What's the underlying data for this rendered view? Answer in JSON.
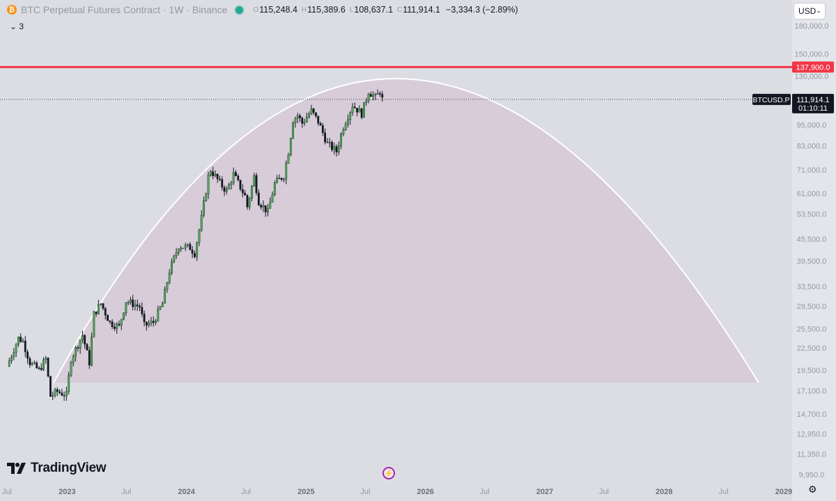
{
  "header": {
    "symbol": "BTC Perpetual Futures Contract · 1W · Binance",
    "open_label": "O",
    "open": "115,248.4",
    "high_label": "H",
    "high": "115,389.6",
    "low_label": "L",
    "low": "108,637.1",
    "close_label": "C",
    "close": "111,914.1",
    "change": "−3,334.3 (−2.89%)",
    "indicator_toggle": "3"
  },
  "currency_selector": "USD",
  "branding": "TradingView",
  "colors": {
    "background": "#dcdde3",
    "up_candle": "#4caf50",
    "down_candle": "#131722",
    "resistance_line": "#f23645",
    "arc": "#ffffff",
    "arc_fill": "#d6c6d4"
  },
  "chart_data": {
    "type": "candlestick",
    "scale": "log",
    "y_range": [
      9000,
      185000
    ],
    "y_ticks": [
      "180,000.0",
      "150,000.0",
      "130,000.0",
      "95,000.0",
      "83,000.0",
      "71,000.0",
      "61,000.0",
      "53,500.0",
      "45,500.0",
      "39,500.0",
      "33,500.0",
      "29,500.0",
      "25,500.0",
      "22,500.0",
      "19,500.0",
      "17,100.0",
      "14,700.0",
      "12,950.0",
      "11,350.0",
      "9,950.0"
    ],
    "x_ticks": [
      "Jul",
      "2023",
      "Jul",
      "2024",
      "Jul",
      "2025",
      "Jul",
      "2026",
      "Jul",
      "2027",
      "Jul",
      "2028",
      "Jul",
      "2029"
    ],
    "x_range": [
      "2022-07-01",
      "2029-01-01"
    ],
    "resistance": {
      "value": 137900,
      "label": "137,900.0"
    },
    "last_price": {
      "symbol_label": "BTCUSD.P",
      "value": 111914.1,
      "label": "111,914.1",
      "countdown": "01:10:11"
    },
    "arc": {
      "start": {
        "date": "2022-11-21",
        "price": 18000
      },
      "peak": {
        "date": "2025-09-01",
        "price": 128000
      },
      "end": {
        "date": "2028-10-16",
        "price": 18000
      }
    },
    "price_path": [
      [
        "2022-07-01",
        20000
      ],
      [
        "2022-08-05",
        24000
      ],
      [
        "2022-08-19",
        23500
      ],
      [
        "2022-09-09",
        20500
      ],
      [
        "2022-10-07",
        19500
      ],
      [
        "2022-10-28",
        21000
      ],
      [
        "2022-11-11",
        16500
      ],
      [
        "2022-12-02",
        17000
      ],
      [
        "2022-12-30",
        16600
      ],
      [
        "2023-01-13",
        21000
      ],
      [
        "2023-02-17",
        24500
      ],
      [
        "2023-03-10",
        20500
      ],
      [
        "2023-03-24",
        28000
      ],
      [
        "2023-04-14",
        30000
      ],
      [
        "2023-05-12",
        26500
      ],
      [
        "2023-06-09",
        25800
      ],
      [
        "2023-06-30",
        30500
      ],
      [
        "2023-08-11",
        29400
      ],
      [
        "2023-08-25",
        26000
      ],
      [
        "2023-09-22",
        26600
      ],
      [
        "2023-10-20",
        30000
      ],
      [
        "2023-11-10",
        37000
      ],
      [
        "2023-12-08",
        43500
      ],
      [
        "2024-01-12",
        43000
      ],
      [
        "2024-01-26",
        41500
      ],
      [
        "2024-02-16",
        52000
      ],
      [
        "2024-03-08",
        68000
      ],
      [
        "2024-03-15",
        71000
      ],
      [
        "2024-04-19",
        64000
      ],
      [
        "2024-05-03",
        62000
      ],
      [
        "2024-05-24",
        69000
      ],
      [
        "2024-06-28",
        60000
      ],
      [
        "2024-07-05",
        56000
      ],
      [
        "2024-07-26",
        68000
      ],
      [
        "2024-08-09",
        58000
      ],
      [
        "2024-09-06",
        54000
      ],
      [
        "2024-09-27",
        65000
      ],
      [
        "2024-10-25",
        68500
      ],
      [
        "2024-11-08",
        80000
      ],
      [
        "2024-11-22",
        98000
      ],
      [
        "2024-12-06",
        101000
      ],
      [
        "2024-12-20",
        96000
      ],
      [
        "2025-01-17",
        104000
      ],
      [
        "2025-02-07",
        97000
      ],
      [
        "2025-03-07",
        84000
      ],
      [
        "2025-04-04",
        80000
      ],
      [
        "2025-04-25",
        94000
      ],
      [
        "2025-05-23",
        108000
      ],
      [
        "2025-06-20",
        102000
      ],
      [
        "2025-07-11",
        118000
      ],
      [
        "2025-08-01",
        113000
      ],
      [
        "2025-08-15",
        118000
      ],
      [
        "2025-08-22",
        111914
      ]
    ]
  }
}
